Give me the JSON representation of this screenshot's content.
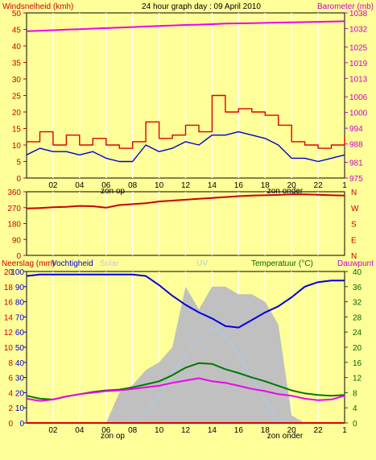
{
  "header": {
    "left_label": "Windsnelheid (kmh)",
    "title": "24 hour graph day : 09 April 2010",
    "right_label": "Barometer (mb)"
  },
  "colors": {
    "background": "#ffff99",
    "grid": "#ffffff",
    "axis_left": "#cc0000",
    "axis_right_baro": "#cc00cc",
    "axis_right_temp": "#006600",
    "gust": "#dd0000",
    "wind": "#0000cc",
    "barometer": "#ee00ee",
    "direction": "#cc0000",
    "humidity": "#0000dd",
    "temperature": "#007700",
    "dewpoint": "#ee00ee",
    "solar": "#c0c0c0",
    "uv": "#aaccee"
  },
  "chart_data": [
    {
      "type": "line",
      "name": "wind-barometer",
      "ylabel": "Windsnelheid (kmh)",
      "ylabel_right": "Barometer (mb)",
      "ylim": [
        0,
        50
      ],
      "yticks": [
        0,
        5,
        10,
        15,
        20,
        25,
        30,
        35,
        40,
        45,
        50
      ],
      "y2lim": [
        975,
        1038
      ],
      "y2ticks": [
        975,
        981,
        988,
        994,
        1000,
        1006,
        1013,
        1019,
        1025,
        1032,
        1038
      ],
      "xlim": [
        0,
        24
      ],
      "xtick_labels": [
        "02",
        "04",
        "06",
        "08",
        "10",
        "12",
        "14",
        "16",
        "18",
        "20",
        "22",
        "1"
      ],
      "annotations": [
        "zon op",
        "zon onder"
      ],
      "x": [
        0,
        1,
        2,
        3,
        4,
        5,
        6,
        7,
        8,
        9,
        10,
        11,
        12,
        13,
        14,
        15,
        16,
        17,
        18,
        19,
        20,
        21,
        22,
        23,
        24
      ],
      "series": [
        {
          "name": "gust",
          "values": [
            11,
            14,
            10,
            13,
            10,
            12,
            10,
            9,
            11,
            17,
            12,
            13,
            16,
            14,
            25,
            20,
            21,
            20,
            19,
            16,
            11,
            10,
            9,
            10,
            13
          ]
        },
        {
          "name": "wind",
          "values": [
            7,
            9,
            8,
            8,
            7,
            8,
            6,
            5,
            5,
            10,
            8,
            9,
            11,
            10,
            13,
            13,
            14,
            13,
            12,
            10,
            6,
            6,
            5,
            6,
            7
          ]
        },
        {
          "name": "barometer",
          "values": [
            1031,
            1031.2,
            1031.4,
            1031.6,
            1031.8,
            1032,
            1032.2,
            1032.4,
            1032.6,
            1032.8,
            1033,
            1033.2,
            1033.4,
            1033.5,
            1033.7,
            1033.9,
            1034,
            1034.1,
            1034.2,
            1034.3,
            1034.4,
            1034.5,
            1034.6,
            1034.7,
            1034.8
          ]
        }
      ]
    },
    {
      "type": "line",
      "name": "wind-direction",
      "ylim": [
        0,
        360
      ],
      "yticks": [
        0,
        90,
        180,
        270,
        360
      ],
      "right_tick_labels": [
        "N",
        "W",
        "S",
        "E",
        "N"
      ],
      "xlim": [
        0,
        24
      ],
      "x": [
        0,
        1,
        2,
        3,
        4,
        5,
        6,
        7,
        8,
        9,
        10,
        11,
        12,
        13,
        14,
        15,
        16,
        17,
        18,
        19,
        20,
        21,
        22,
        23,
        24
      ],
      "series": [
        {
          "name": "direction",
          "values": [
            265,
            268,
            272,
            275,
            280,
            278,
            270,
            285,
            290,
            295,
            305,
            310,
            315,
            320,
            325,
            330,
            335,
            338,
            340,
            342,
            345,
            345,
            343,
            340,
            338
          ]
        }
      ]
    },
    {
      "type": "line",
      "name": "rain-humidity-temperature",
      "left_label": "Neerslag (mm)",
      "left_label_2": "Vochtigheid",
      "solar_label": "Solar",
      "uv_label": "UV",
      "right_label": "Temperatuur (°C)",
      "right_label_2": "Dauwpunt",
      "ylim": [
        0,
        100
      ],
      "yticks_rain": [
        0,
        2,
        4,
        6,
        8,
        10,
        12,
        14,
        16,
        18,
        20
      ],
      "yticks_humidity": [
        0,
        10,
        20,
        30,
        40,
        50,
        60,
        70,
        80,
        90,
        100
      ],
      "y2lim": [
        0,
        40
      ],
      "y2ticks": [
        0,
        4,
        8,
        12,
        16,
        20,
        24,
        28,
        32,
        36,
        40
      ],
      "xlim": [
        0,
        24
      ],
      "xtick_labels": [
        "02",
        "04",
        "06",
        "08",
        "10",
        "12",
        "14",
        "16",
        "18",
        "20",
        "22",
        "1"
      ],
      "annotations": [
        "zon op",
        "zon onder"
      ],
      "x": [
        0,
        1,
        2,
        3,
        4,
        5,
        6,
        7,
        8,
        9,
        10,
        11,
        12,
        13,
        14,
        15,
        16,
        17,
        18,
        19,
        20,
        21,
        22,
        23,
        24
      ],
      "series": [
        {
          "name": "humidity",
          "values": [
            97,
            98,
            98,
            98,
            98,
            98,
            98,
            98,
            98,
            97,
            91,
            84,
            78,
            73,
            69,
            64,
            63,
            68,
            73,
            77,
            83,
            90,
            93,
            94,
            94
          ]
        },
        {
          "name": "temperature",
          "values": [
            7.2,
            6.4,
            6.2,
            7,
            7.6,
            8.2,
            8.6,
            8.8,
            9.4,
            10.2,
            11,
            12.6,
            14.6,
            15.8,
            15.6,
            14.2,
            13.2,
            12,
            11,
            9.8,
            8.6,
            7.8,
            7.4,
            7.2,
            7.4
          ]
        },
        {
          "name": "dewpoint",
          "values": [
            6.4,
            5.8,
            6.2,
            7,
            7.6,
            8,
            8.4,
            8.6,
            9,
            9.4,
            9.8,
            10.6,
            11.2,
            11.8,
            11,
            10.6,
            9.8,
            9,
            8.4,
            7.6,
            7.2,
            6.4,
            6,
            6.2,
            7.2
          ]
        },
        {
          "name": "solar",
          "values": [
            0,
            0,
            0,
            0,
            0,
            0,
            0,
            20,
            25,
            35,
            40,
            50,
            90,
            75,
            90,
            90,
            85,
            85,
            80,
            65,
            5,
            0,
            0,
            0,
            0
          ]
        },
        {
          "name": "uv",
          "values": [
            0,
            0,
            0,
            0,
            0,
            0,
            0,
            0,
            0,
            3,
            7,
            13,
            18,
            22,
            25,
            23,
            18,
            12,
            6,
            1,
            0,
            0,
            0,
            0,
            0
          ]
        },
        {
          "name": "rain",
          "values": [
            0,
            0,
            0,
            0,
            0,
            0,
            0,
            0,
            0,
            0,
            0,
            0,
            0,
            0,
            0,
            0,
            0,
            0,
            0,
            0,
            0,
            0,
            0,
            0,
            0
          ]
        }
      ]
    }
  ]
}
